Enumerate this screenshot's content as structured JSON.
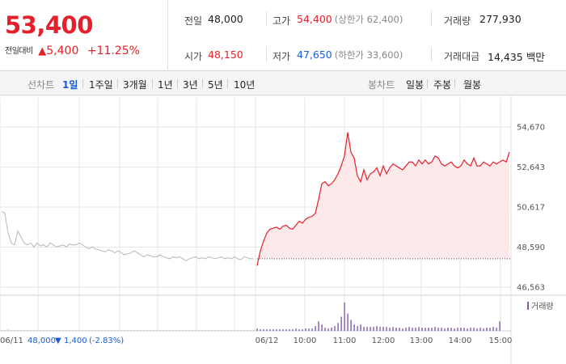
{
  "summary": {
    "current_price": "53,400",
    "change_label": "전일대비",
    "change_arrow": "▲",
    "change_amount": "5,400",
    "change_pct": "+11.25%",
    "stats": {
      "prev_close_label": "전일",
      "prev_close": "48,000",
      "high_label": "고가",
      "high": "54,400",
      "upper_limit": "(상한가 62,400)",
      "volume_label": "거래량",
      "volume": "277,930",
      "open_label": "시가",
      "open": "48,150",
      "low_label": "저가",
      "low": "47,650",
      "lower_limit": "(하한가 33,600)",
      "value_label": "거래대금",
      "value": "14,435",
      "value_unit": "백만"
    }
  },
  "period_bar": {
    "line_label": "선차트",
    "periods": [
      "1일",
      "1주일",
      "3개월",
      "1년",
      "3년",
      "5년",
      "10년"
    ],
    "active_period": "1일",
    "candle_label": "봉차트",
    "candles": [
      "일봉",
      "주봉",
      "월봉"
    ]
  },
  "chart_data": {
    "type": "line",
    "series": [
      {
        "name": "06/11",
        "x": [
          "09:00",
          "09:05",
          "09:10",
          "09:15",
          "09:20",
          "09:25",
          "09:30",
          "09:35",
          "09:40",
          "09:45",
          "09:50",
          "09:55",
          "10:00",
          "10:05",
          "10:10",
          "10:15",
          "10:20",
          "10:25",
          "10:30",
          "10:35",
          "10:40",
          "10:45",
          "10:50",
          "10:55",
          "11:00",
          "11:05",
          "11:10",
          "11:15",
          "11:20",
          "11:25",
          "11:30",
          "11:35",
          "11:40",
          "11:45",
          "11:50",
          "11:55",
          "12:00",
          "12:05",
          "12:10",
          "12:15",
          "12:20",
          "12:25",
          "12:30",
          "12:35",
          "12:40",
          "12:45",
          "12:50",
          "12:55",
          "13:00",
          "13:05",
          "13:10",
          "13:15",
          "13:20",
          "13:25",
          "13:30",
          "13:35",
          "13:40",
          "13:45",
          "13:50",
          "13:55",
          "14:00",
          "14:05",
          "14:10",
          "14:15",
          "14:20",
          "14:25",
          "14:30",
          "14:35",
          "14:40",
          "14:45",
          "14:50",
          "14:55",
          "15:00",
          "15:05",
          "15:10",
          "15:15",
          "15:20",
          "15:25",
          "15:30"
        ],
        "values": [
          50400,
          50300,
          49300,
          48800,
          48700,
          49400,
          49100,
          48800,
          48700,
          48800,
          48600,
          48800,
          48650,
          48700,
          48600,
          48800,
          48700,
          48600,
          48650,
          48700,
          48600,
          48750,
          48700,
          48700,
          48800,
          48700,
          48600,
          48500,
          48600,
          48500,
          48450,
          48400,
          48350,
          48450,
          48400,
          48300,
          48400,
          48300,
          48200,
          48250,
          48300,
          48400,
          48300,
          48200,
          48100,
          48200,
          48150,
          48100,
          48100,
          48200,
          48100,
          48050,
          48000,
          48100,
          48050,
          48100,
          48000,
          47900,
          48000,
          48050,
          48100,
          48000,
          48050,
          48000,
          48100,
          48050,
          48000,
          48050,
          48100,
          48000,
          48050,
          48000,
          48100,
          48000,
          47950,
          48100,
          48050,
          48000,
          48000
        ]
      },
      {
        "name": "06/12",
        "x": [
          "09:00",
          "09:05",
          "09:10",
          "09:15",
          "09:20",
          "09:25",
          "09:30",
          "09:35",
          "09:40",
          "09:45",
          "09:50",
          "09:55",
          "10:00",
          "10:05",
          "10:10",
          "10:15",
          "10:20",
          "10:25",
          "10:30",
          "10:35",
          "10:40",
          "10:45",
          "10:50",
          "10:55",
          "11:00",
          "11:05",
          "11:10",
          "11:15",
          "11:20",
          "11:25",
          "11:30",
          "11:35",
          "11:40",
          "11:45",
          "11:50",
          "11:55",
          "12:00",
          "12:05",
          "12:10",
          "12:15",
          "12:20",
          "12:25",
          "12:30",
          "12:35",
          "12:40",
          "12:45",
          "12:50",
          "12:55",
          "13:00",
          "13:05",
          "13:10",
          "13:15",
          "13:20",
          "13:25",
          "13:30",
          "13:35",
          "13:40",
          "13:45",
          "13:50",
          "13:55",
          "14:00",
          "14:05",
          "14:10",
          "14:15",
          "14:20",
          "14:25",
          "14:30",
          "14:35",
          "14:40",
          "14:45",
          "14:50",
          "14:55",
          "15:00",
          "15:05",
          "15:10",
          "15:15",
          "15:20",
          "15:25",
          "15:30"
        ],
        "values": [
          47650,
          48400,
          48900,
          49300,
          49500,
          49550,
          49600,
          49500,
          49650,
          49700,
          49550,
          49500,
          49700,
          49900,
          49800,
          50000,
          50100,
          50150,
          50300,
          51000,
          51800,
          51900,
          51700,
          51800,
          52000,
          52300,
          52700,
          53200,
          54400,
          53400,
          53100,
          52200,
          51900,
          52500,
          52000,
          52300,
          52400,
          52600,
          52200,
          52700,
          52300,
          52600,
          52800,
          52700,
          52600,
          52500,
          52700,
          52900,
          52900,
          52700,
          53000,
          52800,
          53000,
          52800,
          52900,
          53200,
          53100,
          52800,
          52700,
          52800,
          52900,
          52700,
          52600,
          52700,
          53000,
          52800,
          52700,
          53100,
          52700,
          52700,
          52900,
          52800,
          52700,
          52900,
          52800,
          52900,
          53000,
          52900,
          53400
        ]
      }
    ],
    "prev_close": 48000,
    "ylim": [
      46563,
      54670
    ],
    "y_ticks": [
      "54,670",
      "52,643",
      "50,617",
      "48,590",
      "46,563"
    ],
    "x_tick_labels": [
      "06/12",
      "10:00",
      "11:00",
      "12:00",
      "13:00",
      "14:00",
      "15:00"
    ],
    "volume": {
      "name": "거래량",
      "bars": [
        1,
        1,
        2,
        1,
        1,
        1,
        1,
        1,
        1,
        1,
        1,
        1,
        1,
        1,
        1,
        1,
        1,
        1,
        1,
        1,
        1,
        1,
        1,
        1,
        1,
        1,
        1,
        1,
        1,
        1,
        1,
        1,
        1,
        1,
        1,
        1,
        1,
        1,
        1,
        1,
        1,
        1,
        1,
        1,
        1,
        1,
        1,
        1,
        1,
        1,
        1,
        1,
        1,
        1,
        1,
        1,
        1,
        1,
        1,
        1,
        1,
        1,
        1,
        1,
        1,
        1,
        1,
        1,
        1,
        1,
        1,
        1,
        1,
        1,
        1,
        1,
        1,
        1,
        1,
        3,
        2,
        2,
        2,
        2,
        2,
        2,
        2,
        2,
        2,
        2,
        2,
        3,
        2,
        2,
        3,
        3,
        3,
        6,
        12,
        8,
        4,
        3,
        4,
        6,
        10,
        18,
        36,
        22,
        14,
        8,
        6,
        8,
        5,
        5,
        5,
        5,
        6,
        5,
        5,
        5,
        4,
        5,
        4,
        4,
        3,
        4,
        5,
        4,
        4,
        5,
        4,
        4,
        4,
        4,
        5,
        4,
        4,
        3,
        4,
        4,
        3,
        4,
        4,
        4,
        3,
        4,
        4,
        3,
        4,
        3,
        4,
        4,
        5,
        4,
        12
      ]
    },
    "footer": {
      "date": "06/11",
      "prev": "48,000",
      "arrow": "▼",
      "diff": "1,400",
      "diff_pct": "(-2.83%)"
    },
    "colors": {
      "today_line": "#e5202a",
      "today_fill": "#fde8ea",
      "prev_line": "#b8b8b8",
      "volume_bar": "#7e5fa8",
      "grid": "#e6e6e6",
      "footer_blue": "#1a5bd8"
    },
    "grid": true
  }
}
